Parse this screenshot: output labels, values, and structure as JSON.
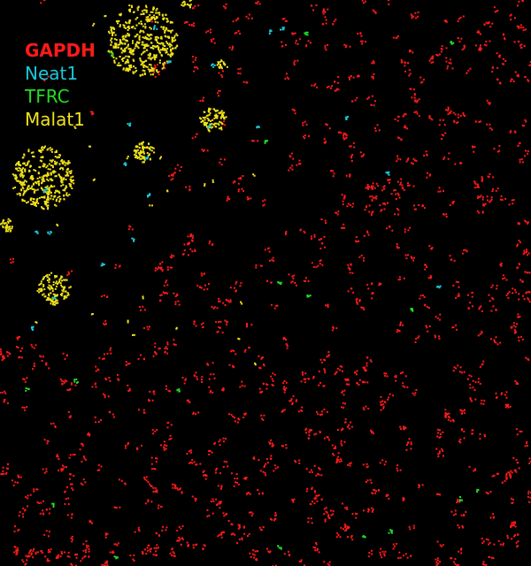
{
  "legend": [
    {
      "label": "GAPDH",
      "color": "#ff1a1a"
    },
    {
      "label": "Neat1",
      "color": "#19c8d8"
    },
    {
      "label": "TFRC",
      "color": "#22dd22"
    },
    {
      "label": "Malat1",
      "color": "#f0e21a"
    }
  ]
}
